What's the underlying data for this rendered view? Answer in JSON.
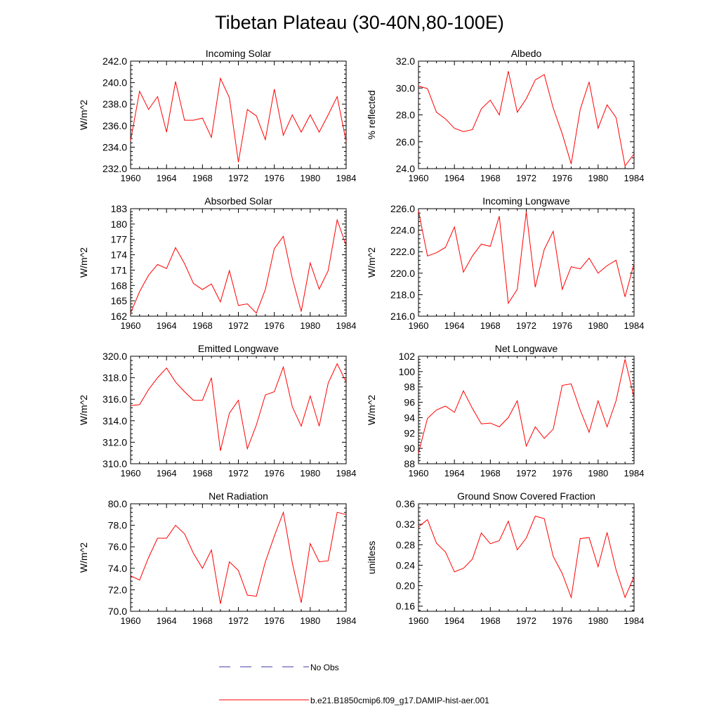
{
  "figure": {
    "title": "Tibetan Plateau (30-40N,80-100E)",
    "legend": [
      {
        "label": "No Obs",
        "color": "#3a3aa8",
        "style": "dashed"
      },
      {
        "label": "b.e21.B1850cmip6.f09_g17.DAMIP-hist-aer.001",
        "color": "#ff0000",
        "style": "solid"
      }
    ]
  },
  "chart_data": [
    {
      "type": "line",
      "title": "Incoming Solar",
      "ylabel": "W/m^2",
      "xlim": [
        1960,
        1984
      ],
      "ylim": [
        232,
        242
      ],
      "xticks": [
        1960,
        1964,
        1968,
        1972,
        1976,
        1980,
        1984
      ],
      "yticks": [
        "232.0",
        "234.0",
        "236.0",
        "238.0",
        "240.0",
        "242.0"
      ],
      "ytick_values": [
        232,
        234,
        236,
        238,
        240,
        242
      ],
      "x": [
        1960,
        1961,
        1962,
        1963,
        1964,
        1965,
        1966,
        1967,
        1968,
        1969,
        1970,
        1971,
        1972,
        1973,
        1974,
        1975,
        1976,
        1977,
        1978,
        1979,
        1980,
        1981,
        1982,
        1983,
        1984
      ],
      "series": [
        {
          "name": "b.e21.B1850cmip6.f09_g17.DAMIP-hist-aer.001",
          "color": "#ff0000",
          "values": [
            234.6,
            239.2,
            237.5,
            238.7,
            235.4,
            240.1,
            236.5,
            236.5,
            236.7,
            234.9,
            240.4,
            238.6,
            232.6,
            237.5,
            236.9,
            234.7,
            239.4,
            235.1,
            237.0,
            235.4,
            237.0,
            235.4,
            237.0,
            238.7,
            234.5
          ]
        }
      ]
    },
    {
      "type": "line",
      "title": "Albedo",
      "ylabel": "% reflected",
      "xlim": [
        1960,
        1984
      ],
      "ylim": [
        24,
        32
      ],
      "xticks": [
        1960,
        1964,
        1968,
        1972,
        1976,
        1980,
        1984
      ],
      "yticks": [
        "24.0",
        "26.0",
        "28.0",
        "30.0",
        "32.0"
      ],
      "ytick_values": [
        24,
        26,
        28,
        30,
        32
      ],
      "x": [
        1960,
        1961,
        1962,
        1963,
        1964,
        1965,
        1966,
        1967,
        1968,
        1969,
        1970,
        1971,
        1972,
        1973,
        1974,
        1975,
        1976,
        1977,
        1978,
        1979,
        1980,
        1981,
        1982,
        1983,
        1984
      ],
      "series": [
        {
          "name": "b.e21.B1850cmip6.f09_g17.DAMIP-hist-aer.001",
          "color": "#ff0000",
          "values": [
            30.15,
            29.95,
            28.2,
            27.7,
            27.0,
            26.75,
            26.9,
            28.45,
            29.1,
            28.0,
            31.25,
            28.2,
            29.2,
            30.6,
            31.0,
            28.5,
            26.6,
            24.35,
            28.4,
            30.45,
            27.0,
            28.75,
            27.8,
            24.2,
            25.1
          ]
        }
      ]
    },
    {
      "type": "line",
      "title": "Absorbed Solar",
      "ylabel": "W/m^2",
      "xlim": [
        1960,
        1984
      ],
      "ylim": [
        162,
        183
      ],
      "xticks": [
        1960,
        1964,
        1968,
        1972,
        1976,
        1980,
        1984
      ],
      "yticks": [
        "162",
        "165",
        "168",
        "171",
        "174",
        "177",
        "180",
        "183"
      ],
      "ytick_values": [
        162,
        165,
        168,
        171,
        174,
        177,
        180,
        183
      ],
      "x": [
        1960,
        1961,
        1962,
        1963,
        1964,
        1965,
        1966,
        1967,
        1968,
        1969,
        1970,
        1971,
        1972,
        1973,
        1974,
        1975,
        1976,
        1977,
        1978,
        1979,
        1980,
        1981,
        1982,
        1983,
        1984
      ],
      "series": [
        {
          "name": "b.e21.B1850cmip6.f09_g17.DAMIP-hist-aer.001",
          "color": "#ff0000",
          "values": [
            162.6,
            166.8,
            170.0,
            172.1,
            171.3,
            175.4,
            172.3,
            168.4,
            167.2,
            168.3,
            164.8,
            170.9,
            164.1,
            164.4,
            162.6,
            167.2,
            175.2,
            177.6,
            169.4,
            162.9,
            172.4,
            167.3,
            170.9,
            180.8,
            175.8
          ]
        }
      ]
    },
    {
      "type": "line",
      "title": "Incoming Longwave",
      "ylabel": "W/m^2",
      "xlim": [
        1960,
        1984
      ],
      "ylim": [
        216,
        226
      ],
      "xticks": [
        1960,
        1964,
        1968,
        1972,
        1976,
        1980,
        1984
      ],
      "yticks": [
        "216.0",
        "218.0",
        "220.0",
        "222.0",
        "224.0",
        "226.0"
      ],
      "ytick_values": [
        216,
        218,
        220,
        222,
        224,
        226
      ],
      "x": [
        1960,
        1961,
        1962,
        1963,
        1964,
        1965,
        1966,
        1967,
        1968,
        1969,
        1970,
        1971,
        1972,
        1973,
        1974,
        1975,
        1976,
        1977,
        1978,
        1979,
        1980,
        1981,
        1982,
        1983,
        1984
      ],
      "series": [
        {
          "name": "b.e21.B1850cmip6.f09_g17.DAMIP-hist-aer.001",
          "color": "#ff0000",
          "values": [
            225.8,
            221.6,
            221.9,
            222.4,
            224.3,
            220.1,
            221.6,
            222.7,
            222.5,
            225.3,
            217.2,
            218.5,
            225.7,
            218.7,
            222.2,
            223.9,
            218.5,
            220.6,
            220.4,
            221.4,
            220.0,
            220.7,
            221.2,
            217.8,
            220.9
          ]
        }
      ]
    },
    {
      "type": "line",
      "title": "Emitted Longwave",
      "ylabel": "W/m^2",
      "xlim": [
        1960,
        1984
      ],
      "ylim": [
        310,
        320
      ],
      "xticks": [
        1960,
        1964,
        1968,
        1972,
        1976,
        1980,
        1984
      ],
      "yticks": [
        "310.0",
        "312.0",
        "314.0",
        "316.0",
        "318.0",
        "320.0"
      ],
      "ytick_values": [
        310,
        312,
        314,
        316,
        318,
        320
      ],
      "x": [
        1960,
        1961,
        1962,
        1963,
        1964,
        1965,
        1966,
        1967,
        1968,
        1969,
        1970,
        1971,
        1972,
        1973,
        1974,
        1975,
        1976,
        1977,
        1978,
        1979,
        1980,
        1981,
        1982,
        1983,
        1984
      ],
      "series": [
        {
          "name": "b.e21.B1850cmip6.f09_g17.DAMIP-hist-aer.001",
          "color": "#ff0000",
          "values": [
            315.4,
            315.5,
            316.9,
            318.0,
            318.9,
            317.6,
            316.7,
            315.9,
            315.9,
            318.0,
            311.2,
            314.7,
            315.9,
            311.4,
            313.6,
            316.4,
            316.7,
            319.0,
            315.3,
            313.5,
            316.3,
            313.5,
            317.5,
            319.3,
            317.6
          ]
        }
      ]
    },
    {
      "type": "line",
      "title": "Net Longwave",
      "ylabel": "W/m^2",
      "xlim": [
        1960,
        1984
      ],
      "ylim": [
        88,
        102
      ],
      "xticks": [
        1960,
        1964,
        1968,
        1972,
        1976,
        1980,
        1984
      ],
      "yticks": [
        "88",
        "90",
        "92",
        "94",
        "96",
        "98",
        "100",
        "102"
      ],
      "ytick_values": [
        88,
        90,
        92,
        94,
        96,
        98,
        100,
        102
      ],
      "x": [
        1960,
        1961,
        1962,
        1963,
        1964,
        1965,
        1966,
        1967,
        1968,
        1969,
        1970,
        1971,
        1972,
        1973,
        1974,
        1975,
        1976,
        1977,
        1978,
        1979,
        1980,
        1981,
        1982,
        1983,
        1984
      ],
      "series": [
        {
          "name": "b.e21.B1850cmip6.f09_g17.DAMIP-hist-aer.001",
          "color": "#ff0000",
          "values": [
            89.4,
            93.9,
            95.0,
            95.5,
            94.7,
            97.5,
            95.2,
            93.2,
            93.3,
            92.8,
            94.0,
            96.2,
            90.3,
            92.8,
            91.3,
            92.5,
            98.2,
            98.4,
            95.0,
            92.1,
            96.2,
            92.8,
            96.2,
            101.6,
            96.6
          ]
        }
      ]
    },
    {
      "type": "line",
      "title": "Net Radiation",
      "ylabel": "W/m^2",
      "xlim": [
        1960,
        1984
      ],
      "ylim": [
        70,
        80
      ],
      "xticks": [
        1960,
        1964,
        1968,
        1972,
        1976,
        1980,
        1984
      ],
      "yticks": [
        "70.0",
        "72.0",
        "74.0",
        "76.0",
        "78.0",
        "80.0"
      ],
      "ytick_values": [
        70,
        72,
        74,
        76,
        78,
        80
      ],
      "x": [
        1960,
        1961,
        1962,
        1963,
        1964,
        1965,
        1966,
        1967,
        1968,
        1969,
        1970,
        1971,
        1972,
        1973,
        1974,
        1975,
        1976,
        1977,
        1978,
        1979,
        1980,
        1981,
        1982,
        1983,
        1984
      ],
      "series": [
        {
          "name": "b.e21.B1850cmip6.f09_g17.DAMIP-hist-aer.001",
          "color": "#ff0000",
          "values": [
            73.3,
            72.9,
            75.0,
            76.8,
            76.8,
            78.0,
            77.2,
            75.4,
            74.0,
            75.7,
            70.7,
            74.6,
            73.8,
            71.5,
            71.4,
            74.6,
            77.0,
            79.2,
            74.5,
            70.8,
            76.3,
            74.6,
            74.7,
            79.2,
            79.0
          ]
        }
      ]
    },
    {
      "type": "line",
      "title": "Ground Snow Covered Fraction",
      "ylabel": "unitless",
      "xlim": [
        1960,
        1984
      ],
      "ylim": [
        0.15,
        0.36
      ],
      "xticks": [
        1960,
        1964,
        1968,
        1972,
        1976,
        1980,
        1984
      ],
      "yticks": [
        "0.16",
        "0.20",
        "0.24",
        "0.28",
        "0.32",
        "0.36"
      ],
      "ytick_values": [
        0.16,
        0.2,
        0.24,
        0.28,
        0.32,
        0.36
      ],
      "x": [
        1960,
        1961,
        1962,
        1963,
        1964,
        1965,
        1966,
        1967,
        1968,
        1969,
        1970,
        1971,
        1972,
        1973,
        1974,
        1975,
        1976,
        1977,
        1978,
        1979,
        1980,
        1981,
        1982,
        1983,
        1984
      ],
      "series": [
        {
          "name": "b.e21.B1850cmip6.f09_g17.DAMIP-hist-aer.001",
          "color": "#ff0000",
          "values": [
            0.315,
            0.329,
            0.283,
            0.266,
            0.227,
            0.234,
            0.252,
            0.303,
            0.282,
            0.288,
            0.326,
            0.27,
            0.293,
            0.336,
            0.331,
            0.257,
            0.224,
            0.177,
            0.292,
            0.294,
            0.237,
            0.304,
            0.231,
            0.177,
            0.218
          ]
        }
      ]
    }
  ]
}
